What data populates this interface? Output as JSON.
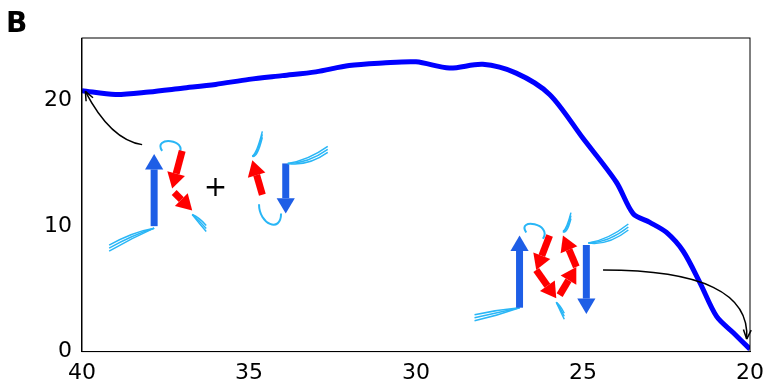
{
  "chart_data": {
    "type": "line",
    "panel": "B",
    "x": [
      40,
      39,
      38,
      37,
      36,
      35,
      34,
      33,
      32,
      31,
      30,
      29,
      28,
      27,
      26,
      25,
      24,
      23.5,
      23,
      22.5,
      22,
      21.5,
      21,
      20.5,
      20
    ],
    "values": [
      20.8,
      20.5,
      20.7,
      21.0,
      21.3,
      21.7,
      22.0,
      22.3,
      22.8,
      23.0,
      23.1,
      22.6,
      22.9,
      22.2,
      20.5,
      17.0,
      13.5,
      11.0,
      10.3,
      9.5,
      8.0,
      5.5,
      2.8,
      1.5,
      0.2
    ],
    "color": "#0000ff",
    "xlim": [
      40,
      20
    ],
    "xticks": [
      40,
      35,
      30,
      25,
      20
    ],
    "ylim": [
      0,
      25
    ],
    "yticks": [
      0,
      10,
      20
    ],
    "grid": false,
    "annotations": [
      "+"
    ]
  }
}
